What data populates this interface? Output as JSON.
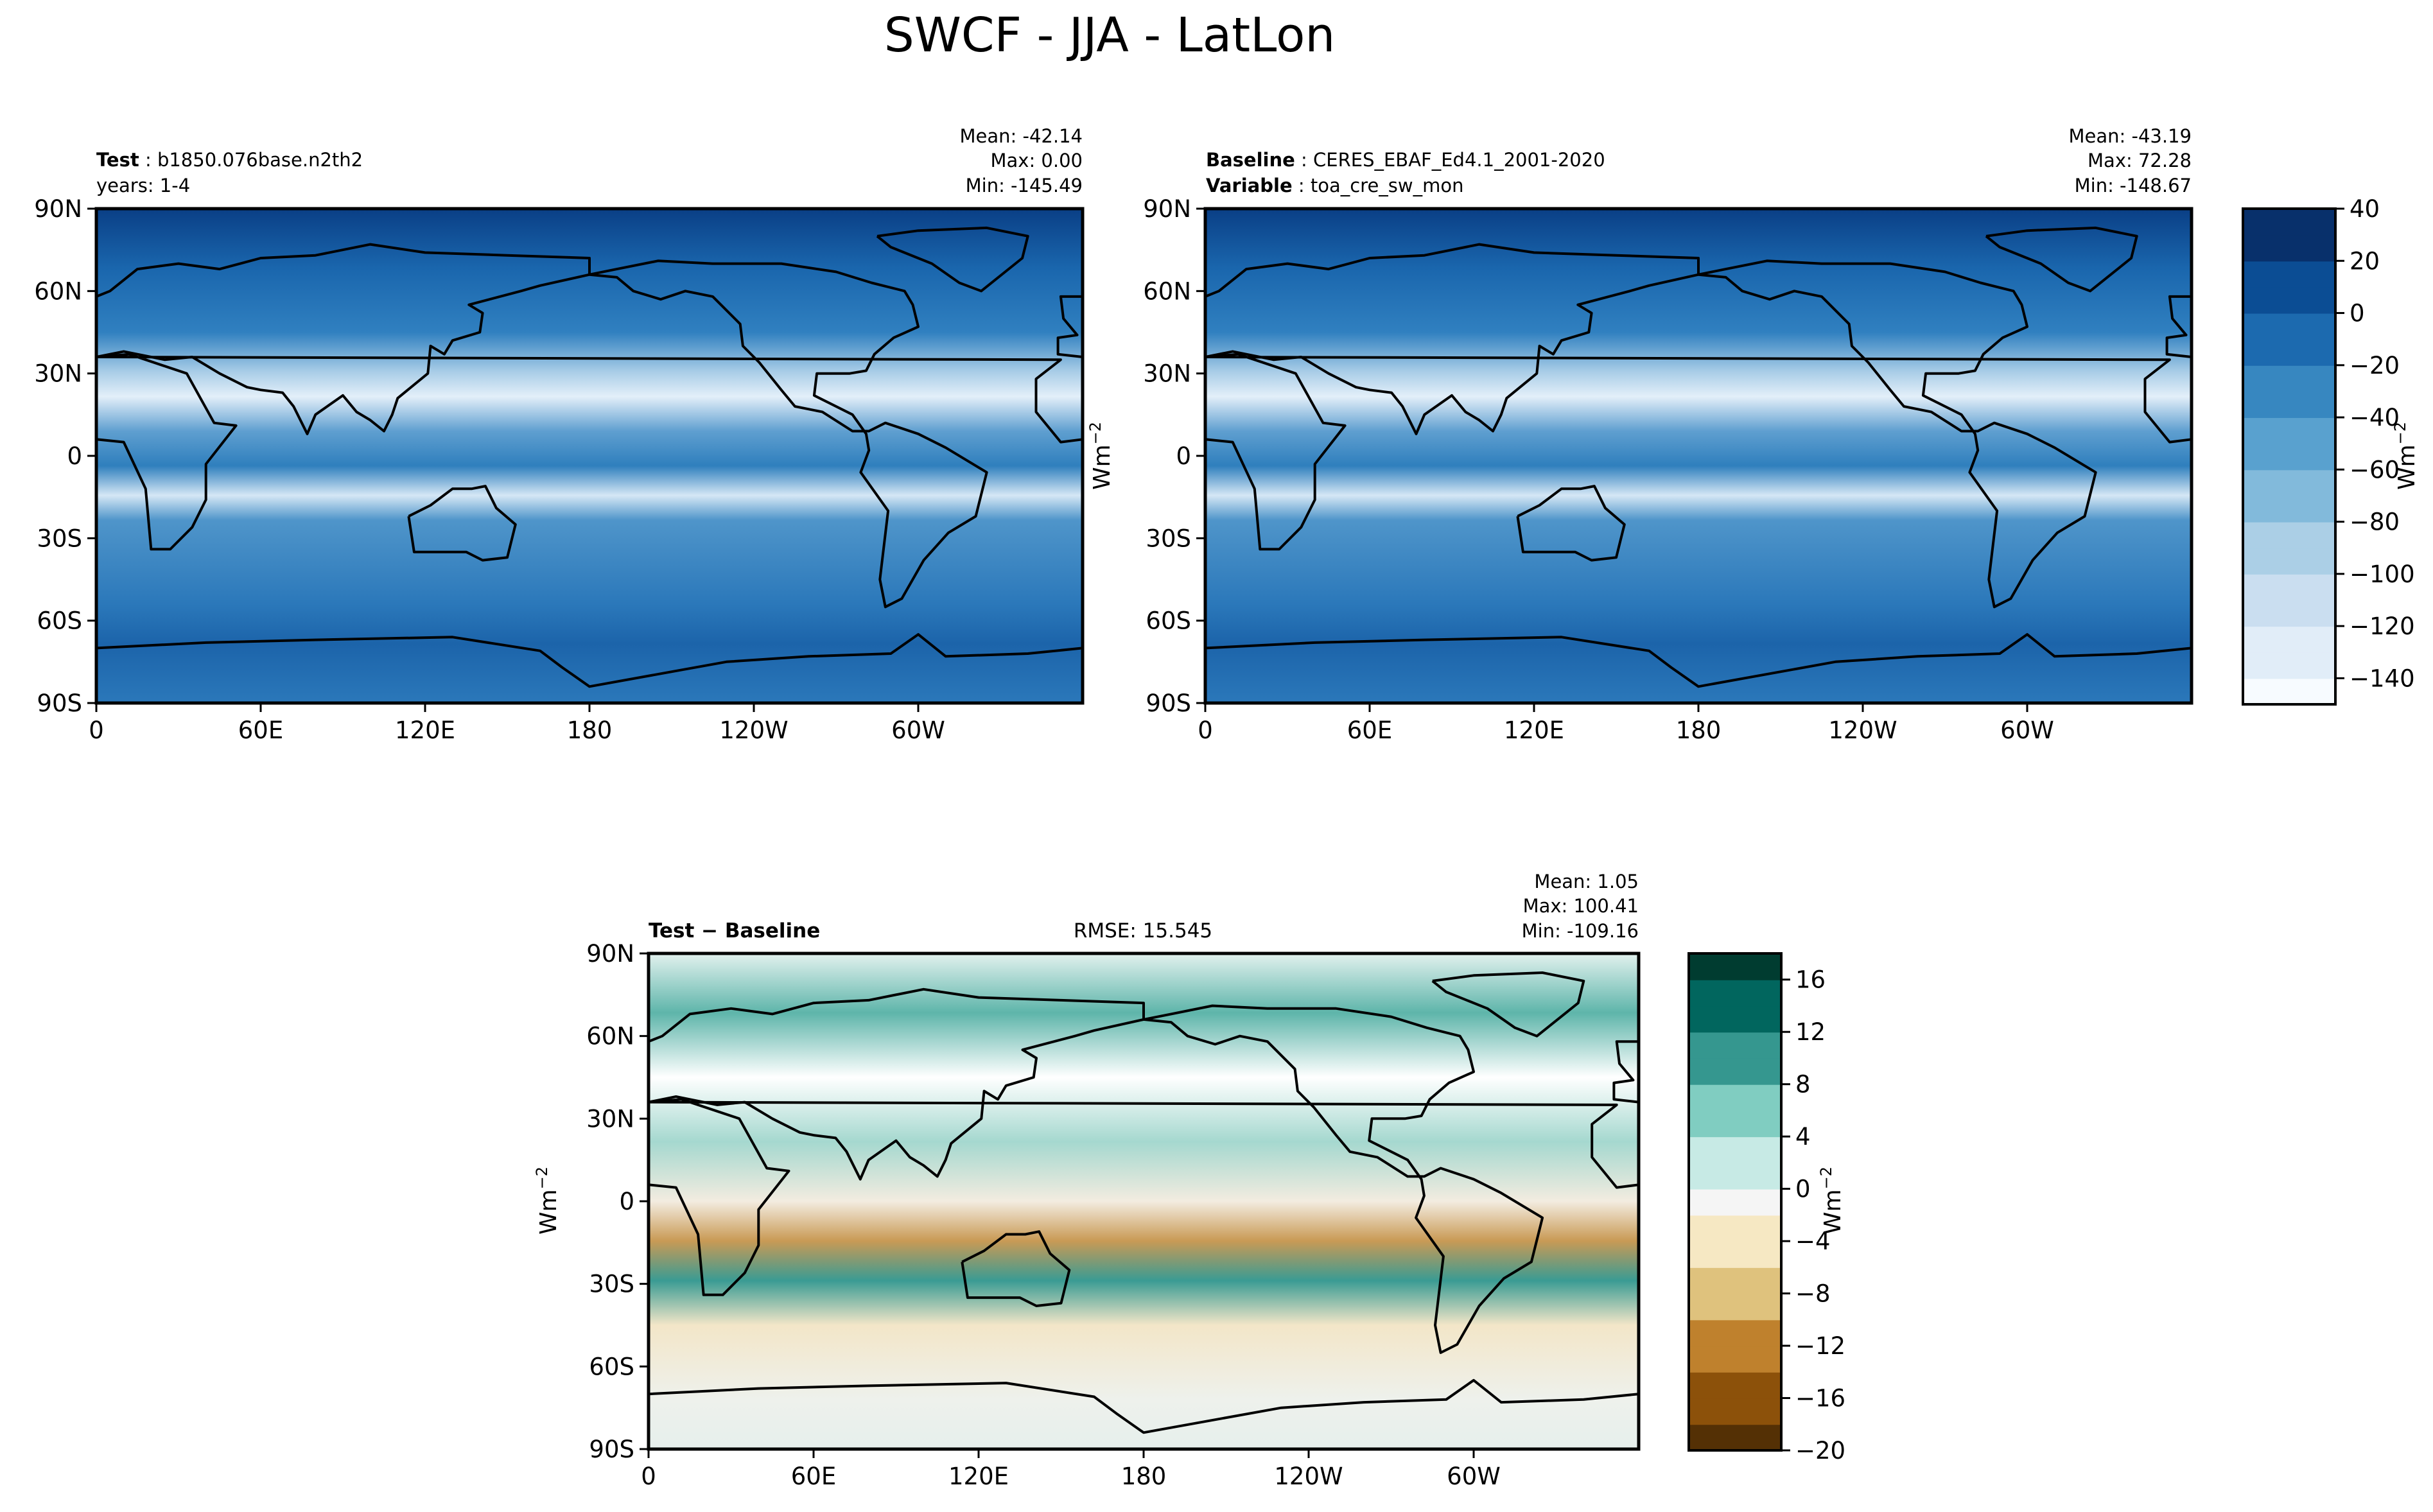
{
  "figure": {
    "title": "SWCF - JJA - LatLon"
  },
  "colors": {
    "blues": [
      "#f7fbff",
      "#e1edf8",
      "#cadef0",
      "#abcfe6",
      "#82badb",
      "#59a1cf",
      "#3787c0",
      "#1c6aaf",
      "#0b4d94",
      "#08306b"
    ],
    "diff": [
      "#543005",
      "#8c510a",
      "#bf812d",
      "#dfc27d",
      "#f6e8c3",
      "#f5f5f5",
      "#c7eae5",
      "#80cdc1",
      "#35978f",
      "#01665e",
      "#003c30"
    ],
    "land_line": "#000000"
  },
  "panels": {
    "test": {
      "label_bold": "Test",
      "label_value": "b1850.076base.n2th2",
      "sub_label": "years: 1-4",
      "stats": {
        "mean": "Mean: -42.14",
        "max": "Max:  0.00",
        "min": "Min: -145.49"
      }
    },
    "baseline": {
      "label_bold": "Baseline",
      "label_value": "CERES_EBAF_Ed4.1_2001-2020",
      "sub_label_bold": "Variable",
      "sub_label_value": "toa_cre_sw_mon",
      "stats": {
        "mean": "Mean: -43.19",
        "max": "Max: 72.28",
        "min": "Min: -148.67"
      }
    },
    "diff": {
      "label_bold": "Test − Baseline",
      "rmse": "RMSE: 15.545",
      "stats": {
        "mean": "Mean:  1.05",
        "max": "Max: 100.41",
        "min": "Min: -109.16"
      }
    }
  },
  "chart_data": [
    {
      "type": "heatmap",
      "title": "Test",
      "xlabel": "",
      "ylabel": "",
      "xticks": [
        "0",
        "60E",
        "120E",
        "180",
        "120W",
        "60W"
      ],
      "yticks": [
        "90N",
        "60N",
        "30N",
        "0",
        "30S",
        "60S",
        "90S"
      ],
      "xlim": [
        0,
        360
      ],
      "ylim": [
        -90,
        90
      ],
      "mean": -42.14,
      "max": 0.0,
      "min": -145.49
    },
    {
      "type": "heatmap",
      "title": "Baseline",
      "xlabel": "",
      "ylabel": "Wm⁻²",
      "xticks": [
        "0",
        "60E",
        "120E",
        "180",
        "120W",
        "60W"
      ],
      "yticks": [
        "90N",
        "60N",
        "30N",
        "0",
        "30S",
        "60S",
        "90S"
      ],
      "xlim": [
        0,
        360
      ],
      "ylim": [
        -90,
        90
      ],
      "mean": -43.19,
      "max": 72.28,
      "min": -148.67,
      "colorbar": {
        "label": "Wm⁻²",
        "ticks": [
          "40",
          "20",
          "0",
          "−20",
          "−40",
          "−60",
          "−80",
          "−100",
          "−120",
          "−140"
        ],
        "range": [
          -150,
          40
        ]
      }
    },
    {
      "type": "heatmap",
      "title": "Test − Baseline",
      "xlabel": "",
      "ylabel": "Wm⁻²",
      "xticks": [
        "0",
        "60E",
        "120E",
        "180",
        "120W",
        "60W"
      ],
      "yticks": [
        "90N",
        "60N",
        "30N",
        "0",
        "30S",
        "60S",
        "90S"
      ],
      "xlim": [
        0,
        360
      ],
      "ylim": [
        -90,
        90
      ],
      "rmse": 15.545,
      "mean": 1.05,
      "max": 100.41,
      "min": -109.16,
      "colorbar": {
        "label": "Wm⁻²",
        "ticks": [
          "16",
          "12",
          "8",
          "4",
          "0",
          "−4",
          "−8",
          "−12",
          "−16",
          "−20"
        ],
        "range": [
          -20,
          18
        ]
      }
    }
  ]
}
